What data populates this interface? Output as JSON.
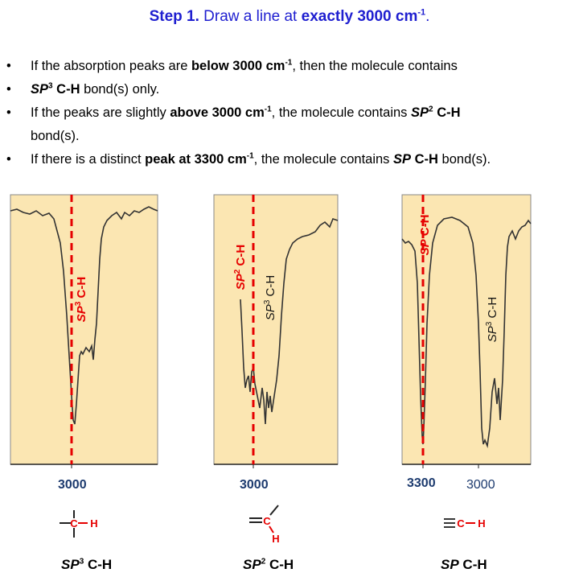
{
  "title": {
    "step": "Step 1.",
    "pre": " Draw a line at ",
    "bold": "exactly 3000 cm",
    "sup": "-1",
    "end": "."
  },
  "bullets": {
    "b1": {
      "pre": "If the absorption peaks are ",
      "bold": "below 3000 cm",
      "sup": "-1",
      "post": ", then the molecule contains"
    },
    "b2": {
      "sp": "SP",
      "sup": "3",
      "bold": " C-H",
      "post": " bond(s) only."
    },
    "b3": {
      "pre": "If the peaks are slightly ",
      "bold": "above 3000 cm",
      "sup": "-1",
      "mid": ", the molecule contains ",
      "sp": "SP",
      "sup2": "2",
      "bold2": " C-H"
    },
    "b3cont": "bond(s).",
    "b4": {
      "pre": "If there is a distinct ",
      "bold": "peak at 3300 cm",
      "sup": "-1",
      "mid": ", the molecule contains ",
      "sp": "SP",
      "bold2": " C-H",
      "post": " bond(s)."
    }
  },
  "panels": {
    "p1": {
      "label_sp": "SP",
      "label_sup": "3",
      "label_ch": " C-H",
      "wn": "3000"
    },
    "p2": {
      "label_sp2": "SP",
      "label_sup2": "2",
      "label_ch2": " C-H",
      "label_sp3": "SP",
      "label_sup3": "3",
      "label_ch3": " C-H",
      "wn": "3000"
    },
    "p3": {
      "label_sp": "SP",
      "label_ch": " C-H",
      "label_sp3": "SP",
      "label_sup3": "3",
      "label_ch3": " C-H",
      "wn1": "3300",
      "wn2": "3000"
    }
  },
  "structures": {
    "s1_h": "H",
    "s2_h": "H",
    "s3_ch": "C",
    "s3_h": "H"
  },
  "captions": {
    "c1": {
      "sp": "SP",
      "sup": "3",
      "ch": " C-H"
    },
    "c2": {
      "sp": "SP",
      "sup": "2",
      "ch": " C-H"
    },
    "c3": {
      "sp": "SP",
      "ch": " C-H"
    }
  },
  "colors": {
    "panel_bg": "#fbe6b2",
    "marker": "#e60000",
    "title": "#1f1fd0",
    "wavenumber": "#1c3a6e"
  }
}
